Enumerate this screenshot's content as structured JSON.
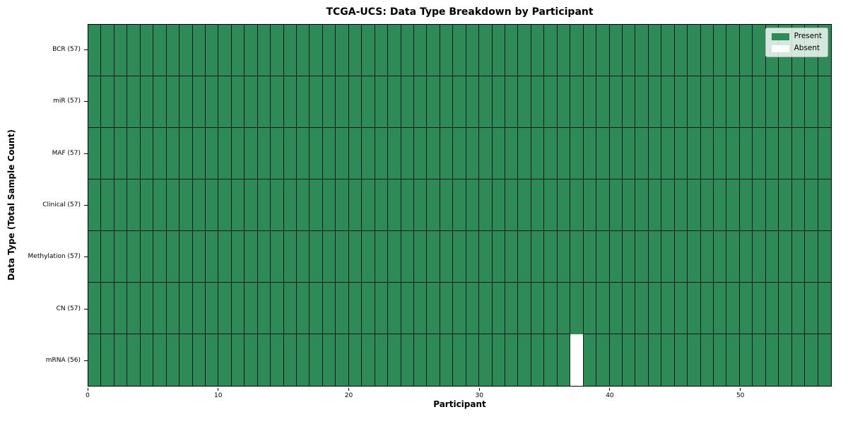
{
  "chart_data": {
    "type": "heatmap",
    "title": "TCGA-UCS: Data Type Breakdown by Participant",
    "xlabel": "Participant",
    "ylabel": "Data Type (Total Sample Count)",
    "x_axis": {
      "ticks": [
        "0",
        "10",
        "20",
        "30",
        "40",
        "50"
      ],
      "tick_values": [
        0,
        10,
        20,
        30,
        40,
        50
      ],
      "range": [
        0,
        57
      ]
    },
    "n_participants": 57,
    "rows": [
      {
        "label": "BCR (57)",
        "data_type": "BCR",
        "sample_count": 57,
        "absent_participants": []
      },
      {
        "label": "miR (57)",
        "data_type": "miR",
        "sample_count": 57,
        "absent_participants": []
      },
      {
        "label": "MAF (57)",
        "data_type": "MAF",
        "sample_count": 57,
        "absent_participants": []
      },
      {
        "label": "Clinical (57)",
        "data_type": "Clinical",
        "sample_count": 57,
        "absent_participants": []
      },
      {
        "label": "Methylation (57)",
        "data_type": "Methylation",
        "sample_count": 57,
        "absent_participants": []
      },
      {
        "label": "CN (57)",
        "data_type": "CN",
        "sample_count": 57,
        "absent_participants": []
      },
      {
        "label": "mRNA (56)",
        "data_type": "mRNA",
        "sample_count": 56,
        "absent_participants": [
          37
        ]
      }
    ],
    "legend": [
      {
        "label": "Present",
        "color": "#2e8b57"
      },
      {
        "label": "Absent",
        "color": "#ffffff"
      }
    ],
    "colors": {
      "present": "#2e8b57",
      "absent": "#ffffff",
      "grid_line": "#1c1c1c",
      "spine": "#000000",
      "legend_bg": "rgba(255,255,255,0.8)",
      "legend_border": "#b5b5b5"
    },
    "layout": {
      "legend_position": "upper right",
      "grid": true,
      "cell_edges": true
    }
  }
}
